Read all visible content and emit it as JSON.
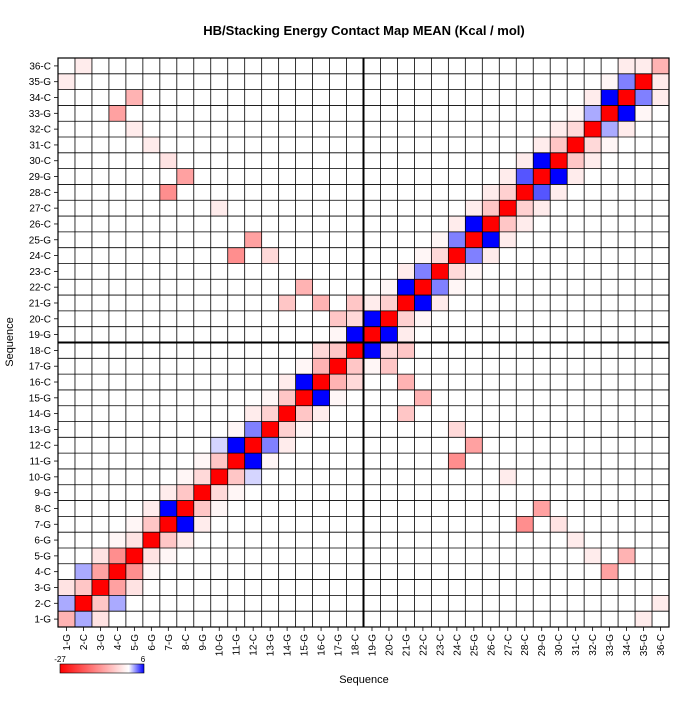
{
  "chart_data": {
    "type": "heatmap",
    "title": "HB/Stacking Energy Contact Map MEAN (Kcal / mol)",
    "xlabel": "Sequence",
    "ylabel": "Sequence",
    "labels": [
      "1-G",
      "2-C",
      "3-G",
      "4-C",
      "5-G",
      "6-G",
      "7-G",
      "8-C",
      "9-G",
      "10-G",
      "11-G",
      "12-C",
      "13-G",
      "14-G",
      "15-G",
      "16-C",
      "17-G",
      "18-C",
      "19-G",
      "20-C",
      "21-G",
      "22-C",
      "23-C",
      "24-C",
      "25-G",
      "26-C",
      "27-C",
      "28-C",
      "29-G",
      "30-C",
      "31-C",
      "32-C",
      "33-G",
      "34-C",
      "35-G",
      "36-C"
    ],
    "colorbar": {
      "min": -27,
      "max": 6,
      "min_label": "-27",
      "max_label": "6",
      "colors": [
        "#ff0000",
        "#ffffff",
        "#0000ff"
      ]
    },
    "divider_after_index": 18,
    "cells": [
      [
        1,
        1,
        -8
      ],
      [
        1,
        2,
        2
      ],
      [
        2,
        2,
        -27
      ],
      [
        2,
        3,
        -6
      ],
      [
        3,
        3,
        -27
      ],
      [
        3,
        4,
        6
      ],
      [
        4,
        4,
        -27
      ],
      [
        4,
        5,
        3
      ],
      [
        5,
        5,
        -27
      ],
      [
        5,
        6,
        -3
      ],
      [
        6,
        6,
        -27
      ],
      [
        6,
        7,
        -6
      ],
      [
        7,
        7,
        -27
      ],
      [
        7,
        8,
        6
      ],
      [
        8,
        8,
        -27
      ],
      [
        8,
        9,
        3
      ],
      [
        9,
        9,
        -27
      ],
      [
        9,
        10,
        -4
      ],
      [
        10,
        10,
        -27
      ],
      [
        10,
        11,
        -6
      ],
      [
        11,
        11,
        -27
      ],
      [
        11,
        12,
        6
      ],
      [
        12,
        12,
        -27
      ],
      [
        12,
        13,
        3
      ],
      [
        13,
        13,
        -27
      ],
      [
        13,
        14,
        -5
      ],
      [
        14,
        14,
        -27
      ],
      [
        14,
        15,
        -6
      ],
      [
        15,
        15,
        -27
      ],
      [
        15,
        16,
        6
      ],
      [
        16,
        16,
        -27
      ],
      [
        16,
        17,
        4
      ],
      [
        17,
        17,
        -27
      ],
      [
        17,
        18,
        -6
      ],
      [
        18,
        18,
        -27
      ],
      [
        18,
        19,
        6
      ],
      [
        19,
        19,
        -27
      ],
      [
        19,
        20,
        6
      ],
      [
        20,
        20,
        -27
      ],
      [
        20,
        21,
        -5
      ],
      [
        21,
        21,
        -27
      ],
      [
        21,
        22,
        6
      ],
      [
        22,
        22,
        -27
      ],
      [
        22,
        23,
        3
      ],
      [
        23,
        23,
        -27
      ],
      [
        23,
        24,
        -4
      ],
      [
        24,
        24,
        -27
      ],
      [
        24,
        25,
        3
      ],
      [
        25,
        25,
        -27
      ],
      [
        25,
        26,
        6
      ],
      [
        26,
        26,
        -27
      ],
      [
        26,
        27,
        -6
      ],
      [
        27,
        27,
        -27
      ],
      [
        27,
        28,
        -5
      ],
      [
        28,
        28,
        -27
      ],
      [
        28,
        29,
        4
      ],
      [
        29,
        29,
        -27
      ],
      [
        29,
        30,
        6
      ],
      [
        30,
        30,
        -27
      ],
      [
        30,
        31,
        -6
      ],
      [
        31,
        31,
        -27
      ],
      [
        31,
        32,
        -4
      ],
      [
        32,
        32,
        -27
      ],
      [
        32,
        33,
        2
      ],
      [
        33,
        33,
        -27
      ],
      [
        33,
        34,
        6
      ],
      [
        34,
        34,
        -27
      ],
      [
        34,
        35,
        3
      ],
      [
        35,
        35,
        -27
      ],
      [
        35,
        36,
        -2
      ],
      [
        36,
        36,
        -8
      ],
      [
        1,
        3,
        -3
      ],
      [
        2,
        4,
        2
      ],
      [
        3,
        5,
        -3
      ],
      [
        4,
        6,
        -1
      ],
      [
        5,
        7,
        -1
      ],
      [
        6,
        8,
        -2
      ],
      [
        7,
        9,
        -2
      ],
      [
        8,
        10,
        -1
      ],
      [
        9,
        11,
        -1
      ],
      [
        10,
        12,
        1
      ],
      [
        11,
        13,
        -1
      ],
      [
        12,
        14,
        -2
      ],
      [
        13,
        15,
        -1
      ],
      [
        14,
        16,
        -2
      ],
      [
        15,
        17,
        -1
      ],
      [
        16,
        18,
        -4
      ],
      [
        17,
        19,
        -1
      ],
      [
        18,
        20,
        -4
      ],
      [
        19,
        21,
        -2
      ],
      [
        20,
        22,
        -1
      ],
      [
        21,
        23,
        -2
      ],
      [
        22,
        24,
        -1
      ],
      [
        23,
        25,
        -1
      ],
      [
        24,
        26,
        -2
      ],
      [
        25,
        27,
        -2
      ],
      [
        26,
        28,
        -2
      ],
      [
        27,
        29,
        -2
      ],
      [
        28,
        30,
        -2
      ],
      [
        29,
        31,
        -2
      ],
      [
        30,
        32,
        -2
      ],
      [
        31,
        33,
        -1
      ],
      [
        32,
        34,
        -2
      ],
      [
        33,
        35,
        -1
      ],
      [
        34,
        36,
        -2
      ],
      [
        3,
        4,
        -10
      ],
      [
        4,
        5,
        -12
      ],
      [
        4,
        33,
        -10
      ],
      [
        5,
        34,
        -8
      ],
      [
        7,
        28,
        -12
      ],
      [
        8,
        29,
        -10
      ],
      [
        11,
        24,
        -12
      ],
      [
        12,
        25,
        -10
      ],
      [
        14,
        21,
        -6
      ],
      [
        15,
        22,
        -8
      ],
      [
        16,
        17,
        -8
      ],
      [
        17,
        20,
        -6
      ],
      [
        18,
        21,
        -6
      ],
      [
        16,
        21,
        -8
      ],
      [
        13,
        24,
        -4
      ],
      [
        8,
        9,
        -6
      ],
      [
        2,
        36,
        -2
      ],
      [
        1,
        35,
        -2
      ],
      [
        7,
        30,
        -3
      ],
      [
        10,
        27,
        -2
      ],
      [
        6,
        31,
        -2
      ],
      [
        5,
        32,
        -2
      ]
    ]
  }
}
